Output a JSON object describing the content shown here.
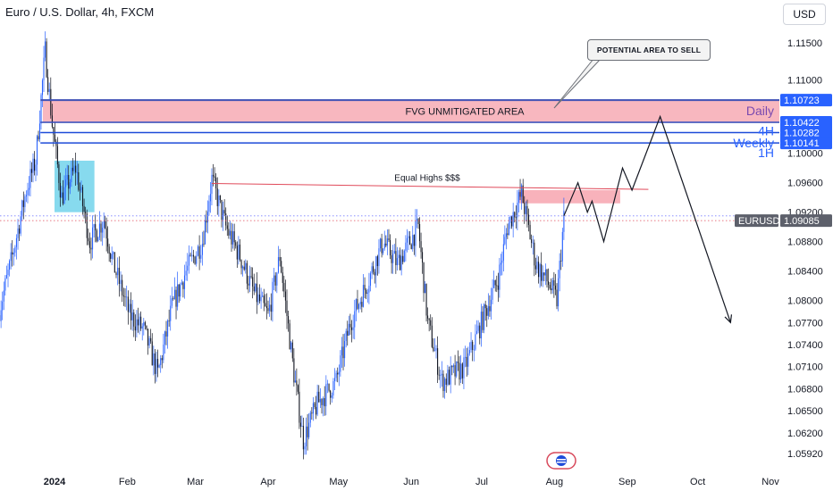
{
  "header": {
    "title": "Euro / U.S. Dollar, 4h, FXCM",
    "currency": "USD"
  },
  "icons": {
    "badge": "news-flag-icon"
  },
  "colors": {
    "candle": "#2962ff",
    "fvg_fill": "#f7aab4",
    "fvg_border": "#3f51b5",
    "level_line": "#1e4bd8",
    "equal_highs": "#e04a5a",
    "ob_fill": "#5fcde8",
    "price_tag": "#2962ff",
    "current_tag": "#5d606b"
  },
  "annotations": {
    "fvg_label": "FVG UNMITIGATED AREA",
    "equal_highs": "Equal Highs $$$",
    "callout": "POTENTIAL AREA TO SELL"
  },
  "chart_data": {
    "type": "candlestick",
    "title": "Euro / U.S. Dollar, 4h, FXCM",
    "ylim": [
      1.0575,
      1.1172
    ],
    "y_ticks": [
      "1.11500",
      "1.11000",
      "1.10000",
      "1.09600",
      "1.09200",
      "1.08800",
      "1.08400",
      "1.08000",
      "1.07700",
      "1.07400",
      "1.07100",
      "1.06800",
      "1.06500",
      "1.06200",
      "1.05920"
    ],
    "x_ticks": [
      "2024",
      "Feb",
      "Mar",
      "Apr",
      "May",
      "Jun",
      "Jul",
      "Aug",
      "Sep",
      "Oct",
      "Nov"
    ],
    "x_tick_dates": [
      "2024-01-01",
      "2024-02-01",
      "2024-03-01",
      "2024-04-01",
      "2024-05-01",
      "2024-06-01",
      "2024-07-01",
      "2024-08-01",
      "2024-09-01",
      "2024-10-01",
      "2024-11-01"
    ],
    "price_path": [
      [
        "2023-12-08",
        1.078
      ],
      [
        "2023-12-14",
        1.086
      ],
      [
        "2023-12-20",
        1.095
      ],
      [
        "2023-12-24",
        1.099
      ],
      [
        "2023-12-28",
        1.1139
      ],
      [
        "2023-12-31",
        1.104
      ],
      [
        "2024-01-04",
        1.094
      ],
      [
        "2024-01-10",
        1.098
      ],
      [
        "2024-01-16",
        1.088
      ],
      [
        "2024-01-22",
        1.091
      ],
      [
        "2024-01-26",
        1.085
      ],
      [
        "2024-02-02",
        1.078
      ],
      [
        "2024-02-08",
        1.076
      ],
      [
        "2024-02-14",
        1.07
      ],
      [
        "2024-02-20",
        1.079
      ],
      [
        "2024-02-26",
        1.084
      ],
      [
        "2024-03-04",
        1.088
      ],
      [
        "2024-03-08",
        1.0965
      ],
      [
        "2024-03-14",
        1.09
      ],
      [
        "2024-03-20",
        1.086
      ],
      [
        "2024-03-26",
        1.081
      ],
      [
        "2024-04-01",
        1.078
      ],
      [
        "2024-04-06",
        1.086
      ],
      [
        "2024-04-12",
        1.07
      ],
      [
        "2024-04-16",
        1.061
      ],
      [
        "2024-04-22",
        1.066
      ],
      [
        "2024-04-30",
        1.069
      ],
      [
        "2024-05-06",
        1.077
      ],
      [
        "2024-05-14",
        1.083
      ],
      [
        "2024-05-20",
        1.088
      ],
      [
        "2024-05-26",
        1.085
      ],
      [
        "2024-06-04",
        1.09
      ],
      [
        "2024-06-08",
        1.077
      ],
      [
        "2024-06-14",
        1.069
      ],
      [
        "2024-06-24",
        1.071
      ],
      [
        "2024-07-02",
        1.078
      ],
      [
        "2024-07-08",
        1.083
      ],
      [
        "2024-07-12",
        1.09
      ],
      [
        "2024-07-18",
        1.0945
      ],
      [
        "2024-07-24",
        1.085
      ],
      [
        "2024-07-30",
        1.082
      ],
      [
        "2024-08-02",
        1.08
      ],
      [
        "2024-08-05",
        1.0912
      ]
    ],
    "projection_path": [
      [
        "2024-08-05",
        1.0915
      ],
      [
        "2024-08-11",
        1.096
      ],
      [
        "2024-08-15",
        1.092
      ],
      [
        "2024-08-17",
        1.0935
      ],
      [
        "2024-08-22",
        1.088
      ],
      [
        "2024-08-30",
        1.098
      ],
      [
        "2024-09-03",
        1.095
      ],
      [
        "2024-09-15",
        1.105
      ],
      [
        "2024-10-15",
        1.077
      ]
    ],
    "fvg_zone": {
      "label": "FVG UNMITIGATED AREA",
      "from": "2023-12-27",
      "to": "2024-11-15",
      "top": 1.10723,
      "bottom": 1.1042
    },
    "order_block": {
      "from": "2024-01-01",
      "to": "2024-01-18",
      "top": 1.099,
      "bottom": 1.092
    },
    "sell_zone": {
      "from": "2024-07-17",
      "to": "2024-08-29",
      "top": 1.095,
      "bottom": 1.0932
    },
    "equal_highs": {
      "label": "Equal Highs $$$",
      "from": [
        "2024-03-08",
        1.0959
      ],
      "to": [
        "2024-09-10",
        1.0951
      ]
    },
    "levels": [
      {
        "name": "Daily",
        "value": 1.10723,
        "label": "1.10723"
      },
      {
        "name": "",
        "value": 1.10422,
        "label": "1.10422"
      },
      {
        "name": "4H",
        "value": 1.10282,
        "label": "1.10282"
      },
      {
        "name": "Weekly",
        "value": 1.10141,
        "label": "1.10141"
      },
      {
        "name": "1H",
        "value": 1.10141,
        "label": ""
      }
    ],
    "current_price": {
      "symbol": "EURUSD",
      "value": 1.09085,
      "label": "1.09085"
    }
  }
}
